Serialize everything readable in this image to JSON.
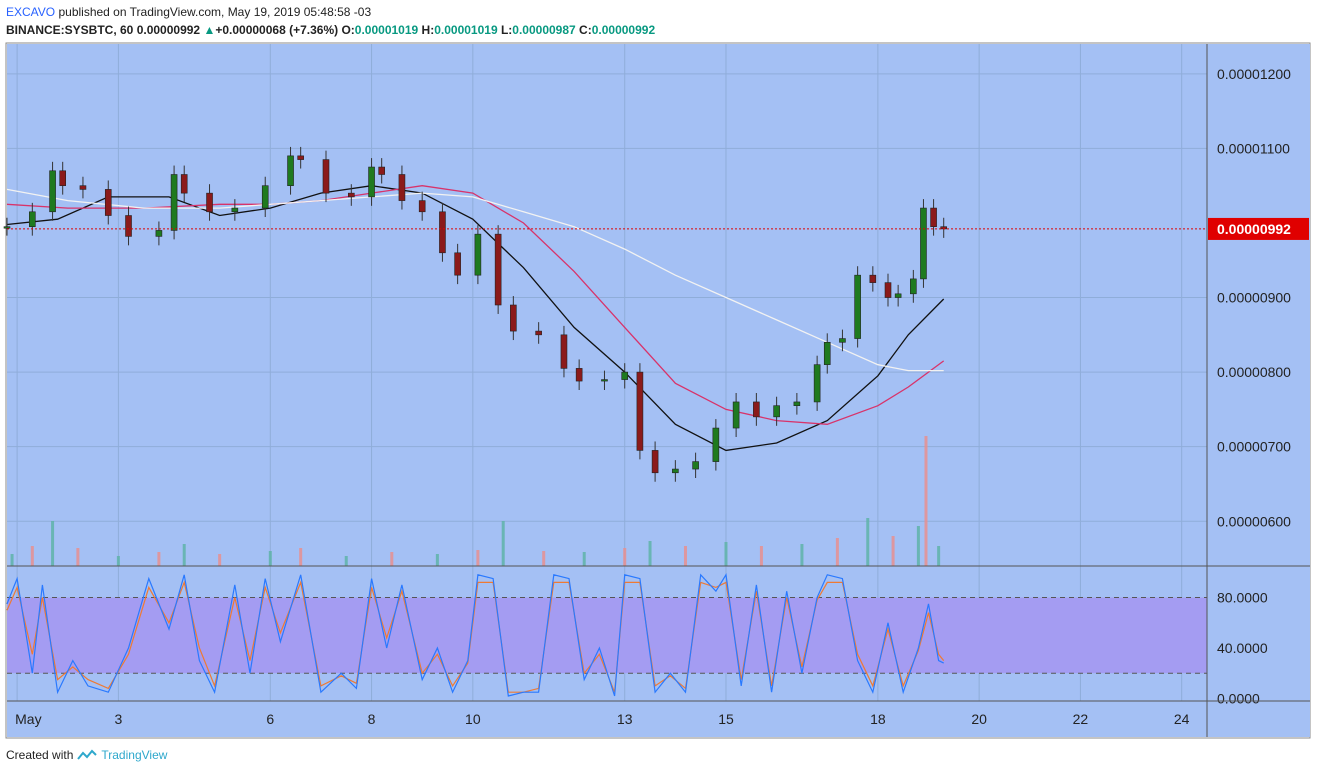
{
  "header": {
    "author": "EXCAVO",
    "published_text": "published on TradingView.com, May 19, 2019 05:48:58 -03",
    "symbol": "BINANCE:SYSBTC, 60",
    "last": "0.00000992",
    "change": "+0.00000068 (+7.36%)",
    "o_label": "O:",
    "o_value": "0.00001019",
    "h_label": "H:",
    "h_value": "0.00001019",
    "l_label": "L:",
    "l_value": "0.00000987",
    "c_label": "C:",
    "c_value": "0.00000992"
  },
  "footer": {
    "created_with": "Created with",
    "brand": "TradingView"
  },
  "colors": {
    "chart_bg": "#a4c0f4",
    "up": "#1f7a1f",
    "down": "#8b1a1a",
    "ma_fast": "#111111",
    "ma_mid": "#d8336a",
    "ma_slow": "#f2f2f2",
    "price_line": "#e00000",
    "stoch_band": "#a49cf2",
    "stoch_k": "#2979ff",
    "stoch_d": "#ef7a33",
    "vol_up": "#5fb3a8",
    "vol_down": "#e88f8f"
  },
  "chart_data": {
    "type": "candlestick",
    "price_axis": {
      "ticks": [
        "0.00001200",
        "0.00001100",
        "0.00000900",
        "0.00000800",
        "0.00000700",
        "0.00000600"
      ],
      "ylim": [
        5.4e-06,
        1.24e-05
      ],
      "last_price_label": "0.00000992",
      "last_price": 9.92e-06
    },
    "time_axis": {
      "labels": [
        "May",
        "3",
        "6",
        "8",
        "10",
        "13",
        "15",
        "18",
        "20",
        "22",
        "24"
      ],
      "label_days": [
        1,
        3,
        6,
        8,
        10,
        13,
        15,
        18,
        20,
        22,
        24
      ],
      "xlim_days": [
        0.8,
        24.5
      ]
    },
    "price_series": {
      "name": "SYSBTC",
      "x_days": [
        0.8,
        1.3,
        1.7,
        1.9,
        2.3,
        2.8,
        3.2,
        3.8,
        4.1,
        4.3,
        4.8,
        5.3,
        5.9,
        6.4,
        6.6,
        7.1,
        7.6,
        8.0,
        8.2,
        8.6,
        9.0,
        9.4,
        9.7,
        10.1,
        10.5,
        10.8,
        11.3,
        11.8,
        12.1,
        12.6,
        13.0,
        13.3,
        13.6,
        14.0,
        14.4,
        14.8,
        15.2,
        15.6,
        16.0,
        16.4,
        16.8,
        17.0,
        17.3,
        17.6,
        17.9,
        18.2,
        18.4,
        18.7,
        18.9,
        19.1,
        19.3
      ],
      "close": [
        9.95,
        10.15,
        10.7,
        10.5,
        10.45,
        10.1,
        9.82,
        9.9,
        10.65,
        10.4,
        10.15,
        10.2,
        10.5,
        10.9,
        10.85,
        10.4,
        10.35,
        10.75,
        10.65,
        10.3,
        10.15,
        9.6,
        9.3,
        9.85,
        8.9,
        8.55,
        8.5,
        8.05,
        7.88,
        7.9,
        8.0,
        6.95,
        6.65,
        6.7,
        6.8,
        7.25,
        7.6,
        7.4,
        7.55,
        7.6,
        8.1,
        8.4,
        8.45,
        9.3,
        9.2,
        9.0,
        9.05,
        9.25,
        10.2,
        9.95,
        9.92
      ]
    },
    "moving_averages": [
      {
        "x_days": [
          0.8,
          1.8,
          2.8,
          4.0,
          5.0,
          6.0,
          7.0,
          8.0,
          9.0,
          10.0,
          11.0,
          12.0,
          13.0,
          14.0,
          15.0,
          16.0,
          17.0,
          18.0,
          18.6,
          19.3
        ],
        "values": [
          9.98,
          10.05,
          10.35,
          10.35,
          10.1,
          10.2,
          10.4,
          10.5,
          10.4,
          10.05,
          9.4,
          8.6,
          8.0,
          7.3,
          6.95,
          7.05,
          7.35,
          7.95,
          8.5,
          8.98
        ]
      },
      {
        "x_days": [
          0.8,
          2.0,
          3.5,
          5.0,
          6.0,
          7.0,
          8.0,
          9.0,
          10.0,
          11.0,
          12.0,
          13.0,
          14.0,
          15.0,
          16.0,
          17.0,
          18.0,
          18.6,
          19.3
        ],
        "values": [
          10.25,
          10.2,
          10.2,
          10.25,
          10.25,
          10.3,
          10.4,
          10.5,
          10.4,
          10.0,
          9.35,
          8.6,
          7.85,
          7.5,
          7.35,
          7.3,
          7.55,
          7.8,
          8.15
        ]
      },
      {
        "x_days": [
          0.8,
          2.0,
          3.5,
          5.0,
          6.0,
          7.0,
          8.0,
          9.0,
          10.0,
          11.0,
          12.0,
          13.0,
          14.0,
          15.0,
          16.0,
          17.0,
          18.0,
          18.6,
          19.3
        ],
        "values": [
          10.45,
          10.3,
          10.2,
          10.2,
          10.25,
          10.3,
          10.35,
          10.4,
          10.35,
          10.15,
          9.95,
          9.65,
          9.3,
          9.0,
          8.7,
          8.4,
          8.1,
          8.02,
          8.02
        ]
      }
    ],
    "volume": {
      "x_days": [
        0.9,
        1.3,
        1.7,
        2.2,
        3.0,
        3.8,
        4.3,
        5.0,
        6.0,
        6.6,
        7.5,
        8.4,
        9.3,
        10.1,
        10.6,
        11.4,
        12.2,
        13.0,
        13.5,
        14.2,
        15.0,
        15.7,
        16.5,
        17.2,
        17.8,
        18.3,
        18.8,
        18.95,
        19.2
      ],
      "values": [
        12,
        20,
        45,
        18,
        10,
        14,
        22,
        12,
        15,
        18,
        10,
        14,
        12,
        16,
        45,
        15,
        14,
        18,
        25,
        20,
        24,
        20,
        22,
        28,
        48,
        30,
        40,
        130,
        20
      ]
    },
    "stochastic": {
      "ticks": [
        "80.0000",
        "40.0000",
        "0.0000"
      ],
      "ylim": [
        -2,
        105
      ],
      "levels": [
        80,
        20
      ],
      "k_x_days": [
        0.8,
        1.0,
        1.3,
        1.5,
        1.8,
        2.1,
        2.4,
        2.8,
        3.2,
        3.6,
        4.0,
        4.3,
        4.6,
        4.9,
        5.3,
        5.6,
        5.9,
        6.2,
        6.6,
        7.0,
        7.4,
        7.7,
        8.0,
        8.3,
        8.6,
        9.0,
        9.3,
        9.6,
        9.9,
        10.1,
        10.4,
        10.7,
        11.0,
        11.3,
        11.6,
        11.9,
        12.2,
        12.5,
        12.8,
        13.0,
        13.3,
        13.6,
        13.9,
        14.2,
        14.5,
        14.8,
        15.0,
        15.3,
        15.6,
        15.9,
        16.2,
        16.5,
        16.8,
        17.0,
        17.3,
        17.6,
        17.9,
        18.2,
        18.5,
        18.8,
        19.0,
        19.2,
        19.3
      ],
      "k_values": [
        75,
        95,
        20,
        90,
        5,
        30,
        10,
        5,
        40,
        95,
        55,
        98,
        30,
        5,
        90,
        20,
        95,
        45,
        98,
        5,
        20,
        8,
        95,
        40,
        90,
        15,
        40,
        5,
        30,
        98,
        95,
        2,
        5,
        5,
        98,
        95,
        15,
        40,
        2,
        98,
        95,
        5,
        20,
        5,
        98,
        85,
        98,
        10,
        90,
        5,
        85,
        20,
        80,
        98,
        95,
        30,
        5,
        60,
        5,
        40,
        75,
        30,
        28
      ],
      "d_x_days": [
        0.8,
        1.0,
        1.3,
        1.5,
        1.8,
        2.1,
        2.4,
        2.8,
        3.2,
        3.6,
        4.0,
        4.3,
        4.6,
        4.9,
        5.3,
        5.6,
        5.9,
        6.2,
        6.6,
        7.0,
        7.4,
        7.7,
        8.0,
        8.3,
        8.6,
        9.0,
        9.3,
        9.6,
        9.9,
        10.1,
        10.4,
        10.7,
        11.0,
        11.3,
        11.6,
        11.9,
        12.2,
        12.5,
        12.8,
        13.0,
        13.3,
        13.6,
        13.9,
        14.2,
        14.5,
        14.8,
        15.0,
        15.3,
        15.6,
        15.9,
        16.2,
        16.5,
        16.8,
        17.0,
        17.3,
        17.6,
        17.9,
        18.2,
        18.5,
        18.8,
        19.0,
        19.2,
        19.3
      ],
      "d_values": [
        70,
        88,
        35,
        80,
        15,
        25,
        15,
        8,
        35,
        88,
        60,
        92,
        40,
        10,
        80,
        30,
        88,
        52,
        92,
        10,
        18,
        12,
        88,
        48,
        85,
        20,
        35,
        10,
        28,
        92,
        92,
        5,
        5,
        8,
        92,
        92,
        20,
        35,
        5,
        92,
        92,
        10,
        18,
        8,
        92,
        88,
        92,
        15,
        85,
        10,
        80,
        25,
        78,
        92,
        92,
        35,
        10,
        55,
        10,
        38,
        68,
        35,
        30
      ]
    }
  }
}
